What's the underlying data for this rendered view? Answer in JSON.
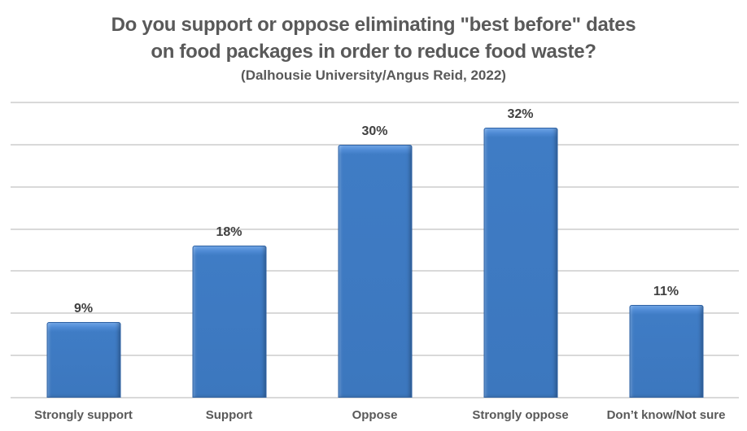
{
  "title": {
    "line1": "Do you support or oppose eliminating \"best before\" dates",
    "line2": "on food packages in order to reduce food waste?",
    "subtitle": "(Dalhousie University/Angus Reid, 2022)"
  },
  "colors": {
    "bar_fill": "#3e7bc4",
    "bar_highlight": "#71a7e8",
    "bar_border": "#2e62a4",
    "gridline": "#d9d9d9",
    "title_text": "#595959",
    "data_label_text": "#404040",
    "category_label_text": "#595959",
    "background": "#ffffff"
  },
  "chart_data": {
    "type": "bar",
    "title": "Do you support or oppose eliminating \"best before\" dates on food packages in order to reduce food waste?",
    "subtitle": "(Dalhousie University/Angus Reid, 2022)",
    "categories": [
      "Strongly support",
      "Support",
      "Oppose",
      "Strongly oppose",
      "Don’t know/Not sure"
    ],
    "values": [
      9,
      18,
      30,
      32,
      11
    ],
    "data_labels": [
      "9%",
      "18%",
      "30%",
      "32%",
      "11%"
    ],
    "xlabel": "",
    "ylabel": "",
    "ylim": [
      0,
      35
    ],
    "gridline_interval": 5,
    "grid": true,
    "y_axis_labels_visible": false,
    "legend_position": "none"
  }
}
